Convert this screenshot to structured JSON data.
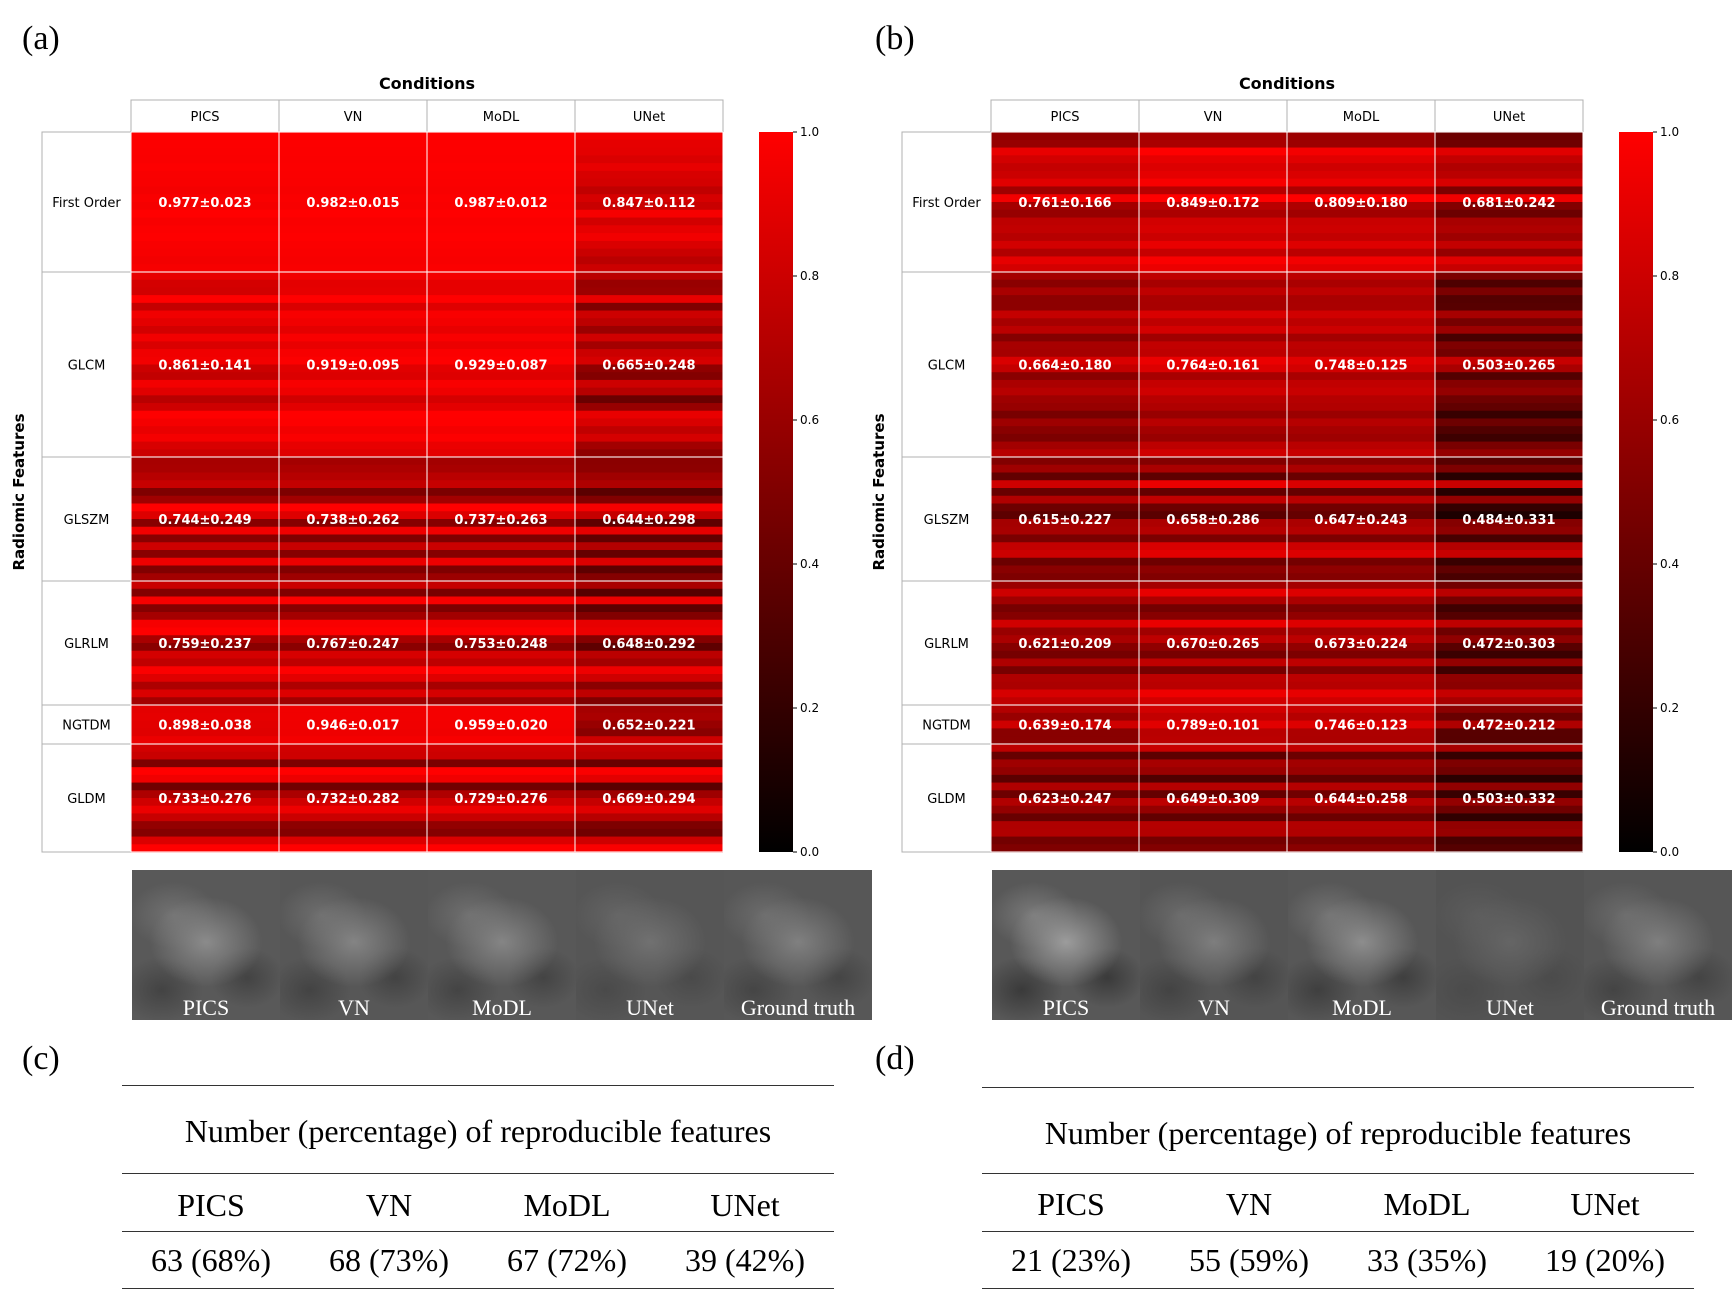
{
  "chart_data": [
    {
      "type": "heatmap",
      "panel": "(a)",
      "title": "Conditions",
      "ylabel": "Radiomic Features",
      "columns": [
        "PICS",
        "VN",
        "MoDL",
        "UNet"
      ],
      "groups": [
        "First Order",
        "GLCM",
        "GLSZM",
        "GLRLM",
        "NGTDM",
        "GLDM"
      ],
      "group_feature_counts": [
        18,
        24,
        16,
        16,
        5,
        14
      ],
      "annotations": [
        [
          "0.977±0.023",
          "0.982±0.015",
          "0.987±0.012",
          "0.847±0.112"
        ],
        [
          "0.861±0.141",
          "0.919±0.095",
          "0.929±0.087",
          "0.665±0.248"
        ],
        [
          "0.744±0.249",
          "0.738±0.262",
          "0.737±0.263",
          "0.644±0.298"
        ],
        [
          "0.759±0.237",
          "0.767±0.247",
          "0.753±0.248",
          "0.648±0.292"
        ],
        [
          "0.898±0.038",
          "0.946±0.017",
          "0.959±0.020",
          "0.652±0.221"
        ],
        [
          "0.733±0.276",
          "0.732±0.282",
          "0.729±0.276",
          "0.669±0.294"
        ]
      ],
      "means": [
        [
          0.977,
          0.982,
          0.987,
          0.847
        ],
        [
          0.861,
          0.919,
          0.929,
          0.665
        ],
        [
          0.744,
          0.738,
          0.737,
          0.644
        ],
        [
          0.759,
          0.767,
          0.753,
          0.648
        ],
        [
          0.898,
          0.946,
          0.959,
          0.652
        ],
        [
          0.733,
          0.732,
          0.729,
          0.669
        ]
      ],
      "stds": [
        [
          0.023,
          0.015,
          0.012,
          0.112
        ],
        [
          0.141,
          0.095,
          0.087,
          0.248
        ],
        [
          0.249,
          0.262,
          0.263,
          0.298
        ],
        [
          0.237,
          0.247,
          0.248,
          0.292
        ],
        [
          0.038,
          0.017,
          0.02,
          0.221
        ],
        [
          0.276,
          0.282,
          0.276,
          0.294
        ]
      ],
      "colorbar": {
        "min": 0.0,
        "max": 1.0,
        "ticks": [
          "0.0",
          "0.2",
          "0.4",
          "0.6",
          "0.8",
          "1.0"
        ],
        "colors": [
          "#000000",
          "#ff0000"
        ]
      }
    },
    {
      "type": "heatmap",
      "panel": "(b)",
      "title": "Conditions",
      "ylabel": "Radiomic Features",
      "columns": [
        "PICS",
        "VN",
        "MoDL",
        "UNet"
      ],
      "groups": [
        "First Order",
        "GLCM",
        "GLSZM",
        "GLRLM",
        "NGTDM",
        "GLDM"
      ],
      "group_feature_counts": [
        18,
        24,
        16,
        16,
        5,
        14
      ],
      "annotations": [
        [
          "0.761±0.166",
          "0.849±0.172",
          "0.809±0.180",
          "0.681±0.242"
        ],
        [
          "0.664±0.180",
          "0.764±0.161",
          "0.748±0.125",
          "0.503±0.265"
        ],
        [
          "0.615±0.227",
          "0.658±0.286",
          "0.647±0.243",
          "0.484±0.331"
        ],
        [
          "0.621±0.209",
          "0.670±0.265",
          "0.673±0.224",
          "0.472±0.303"
        ],
        [
          "0.639±0.174",
          "0.789±0.101",
          "0.746±0.123",
          "0.472±0.212"
        ],
        [
          "0.623±0.247",
          "0.649±0.309",
          "0.644±0.258",
          "0.503±0.332"
        ]
      ],
      "means": [
        [
          0.761,
          0.849,
          0.809,
          0.681
        ],
        [
          0.664,
          0.764,
          0.748,
          0.503
        ],
        [
          0.615,
          0.658,
          0.647,
          0.484
        ],
        [
          0.621,
          0.67,
          0.673,
          0.472
        ],
        [
          0.639,
          0.789,
          0.746,
          0.472
        ],
        [
          0.623,
          0.649,
          0.644,
          0.503
        ]
      ],
      "stds": [
        [
          0.166,
          0.172,
          0.18,
          0.242
        ],
        [
          0.18,
          0.161,
          0.125,
          0.265
        ],
        [
          0.227,
          0.286,
          0.243,
          0.331
        ],
        [
          0.209,
          0.265,
          0.224,
          0.303
        ],
        [
          0.174,
          0.101,
          0.123,
          0.212
        ],
        [
          0.247,
          0.309,
          0.258,
          0.332
        ]
      ],
      "colorbar": {
        "min": 0.0,
        "max": 1.0,
        "ticks": [
          "0.0",
          "0.2",
          "0.4",
          "0.6",
          "0.8",
          "1.0"
        ],
        "colors": [
          "#000000",
          "#ff0000"
        ]
      }
    },
    {
      "type": "table",
      "panel": "(c)",
      "title": "Number (percentage) of reproducible features",
      "columns": [
        "PICS",
        "VN",
        "MoDL",
        "UNet"
      ],
      "values": [
        "63 (68%)",
        "68 (73%)",
        "67 (72%)",
        "39 (42%)"
      ]
    },
    {
      "type": "table",
      "panel": "(d)",
      "title": "Number (percentage) of reproducible features",
      "columns": [
        "PICS",
        "VN",
        "MoDL",
        "UNet"
      ],
      "values": [
        "21 (23%)",
        "55 (59%)",
        "33 (35%)",
        "19 (20%)"
      ]
    }
  ],
  "image_strips": [
    {
      "labels": [
        "PICS",
        "VN",
        "MoDL",
        "UNet",
        "Ground truth"
      ],
      "brightness": [
        0.62,
        0.58,
        0.6,
        0.52,
        0.56
      ],
      "contrast": [
        0.55,
        0.5,
        0.5,
        0.3,
        0.45
      ]
    },
    {
      "labels": [
        "PICS",
        "VN",
        "MoDL",
        "UNet",
        "Ground truth"
      ],
      "brightness": [
        0.6,
        0.5,
        0.55,
        0.42,
        0.52
      ],
      "contrast": [
        0.75,
        0.45,
        0.6,
        0.2,
        0.45
      ]
    }
  ]
}
